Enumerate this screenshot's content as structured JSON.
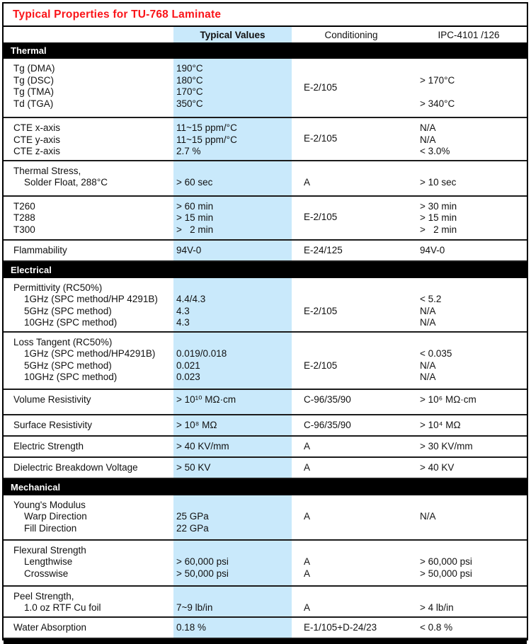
{
  "title": "Typical Properties for TU-768 Laminate",
  "header": {
    "typical": "Typical Values",
    "conditioning": "Conditioning",
    "ipc": "IPC-4101 /126"
  },
  "colors": {
    "title_red": "#fa1419",
    "stripe_blue": "#c9e9fb",
    "bar_black": "#000000"
  },
  "sections": [
    {
      "name": "Thermal",
      "rows": [
        {
          "property": {
            "lines": [
              "Tg (DMA)",
              "Tg (DSC)",
              "Tg (TMA)",
              "Td (TGA)"
            ]
          },
          "typical": {
            "lines": [
              "190°C",
              "180°C",
              "170°C",
              "350°C"
            ]
          },
          "conditioning": {
            "lines": [
              "E-2/105"
            ],
            "center": true
          },
          "ipc": {
            "lines": [
              "",
              "> 170°C",
              "",
              "> 340°C"
            ]
          }
        },
        {
          "property": {
            "lines": [
              "CTE x-axis",
              "CTE y-axis",
              "CTE z-axis"
            ]
          },
          "typical": {
            "lines": [
              "11~15 ppm/°C",
              "11~15 ppm/°C",
              "2.7 %"
            ]
          },
          "conditioning": {
            "lines": [
              "E-2/105"
            ],
            "center": true
          },
          "ipc": {
            "lines": [
              "N/A",
              "N/A",
              "< 3.0%"
            ]
          }
        },
        {
          "property": {
            "lines": [
              "Thermal Stress,",
              "    Solder Float, 288°C"
            ]
          },
          "typical": {
            "lines": [
              "",
              "> 60 sec"
            ]
          },
          "conditioning": {
            "lines": [
              "",
              "A"
            ]
          },
          "ipc": {
            "lines": [
              "",
              "> 10 sec"
            ]
          }
        },
        {
          "property": {
            "lines": [
              "T260",
              "T288",
              "T300"
            ]
          },
          "typical": {
            "lines": [
              "> 60 min",
              "> 15 min",
              ">   2 min"
            ]
          },
          "conditioning": {
            "lines": [
              "E-2/105"
            ],
            "center": true
          },
          "ipc": {
            "lines": [
              "> 30 min",
              "> 15 min",
              ">   2 min"
            ]
          }
        },
        {
          "property": {
            "lines": [
              "Flammability"
            ]
          },
          "typical": {
            "lines": [
              "94V-0"
            ]
          },
          "conditioning": {
            "lines": [
              "E-24/125"
            ]
          },
          "ipc": {
            "lines": [
              "94V-0"
            ]
          }
        }
      ]
    },
    {
      "name": "Electrical",
      "rows": [
        {
          "property": {
            "lines": [
              "Permittivity (RC50%)",
              "    1GHz (SPC method/HP 4291B)",
              "    5GHz (SPC method)",
              "    10GHz (SPC method)"
            ]
          },
          "typical": {
            "lines": [
              "",
              "4.4/4.3",
              "4.3",
              "4.3"
            ]
          },
          "conditioning": {
            "lines": [
              "",
              "",
              "E-2/105",
              ""
            ]
          },
          "ipc": {
            "lines": [
              "",
              "< 5.2",
              "N/A",
              "N/A"
            ]
          }
        },
        {
          "property": {
            "lines": [
              "Loss Tangent (RC50%)",
              "    1GHz (SPC method/HP4291B)",
              "    5GHz (SPC method)",
              "    10GHz (SPC method)"
            ]
          },
          "typical": {
            "lines": [
              "",
              "0.019/0.018",
              "0.021",
              "0.023"
            ]
          },
          "conditioning": {
            "lines": [
              "",
              "",
              "E-2/105",
              ""
            ]
          },
          "ipc": {
            "lines": [
              "",
              "< 0.035",
              "N/A",
              "N/A"
            ]
          }
        },
        {
          "property": {
            "lines": [
              "Volume Resistivity"
            ]
          },
          "typical": {
            "lines": [
              "> 10¹⁰ MΩ·cm"
            ]
          },
          "conditioning": {
            "lines": [
              "C-96/35/90"
            ]
          },
          "ipc": {
            "lines": [
              "> 10⁶ MΩ·cm"
            ]
          }
        },
        {
          "property": {
            "lines": [
              "Surface Resistivity"
            ]
          },
          "typical": {
            "lines": [
              "> 10⁸ MΩ"
            ]
          },
          "conditioning": {
            "lines": [
              "C-96/35/90"
            ]
          },
          "ipc": {
            "lines": [
              "> 10⁴ MΩ"
            ]
          }
        },
        {
          "property": {
            "lines": [
              "Electric Strength"
            ]
          },
          "typical": {
            "lines": [
              "> 40 KV/mm"
            ]
          },
          "conditioning": {
            "lines": [
              "A"
            ]
          },
          "ipc": {
            "lines": [
              "> 30 KV/mm"
            ]
          }
        },
        {
          "property": {
            "lines": [
              "Dielectric Breakdown Voltage"
            ]
          },
          "typical": {
            "lines": [
              "> 50 KV"
            ]
          },
          "conditioning": {
            "lines": [
              "A"
            ]
          },
          "ipc": {
            "lines": [
              "> 40 KV"
            ]
          }
        }
      ]
    },
    {
      "name": "Mechanical",
      "rows": [
        {
          "property": {
            "lines": [
              "Young's Modulus",
              "    Warp Direction",
              "    Fill Direction"
            ]
          },
          "typical": {
            "lines": [
              "",
              "25 GPa",
              "22 GPa"
            ]
          },
          "conditioning": {
            "lines": [
              "A"
            ],
            "center": true
          },
          "ipc": {
            "lines": [
              "N/A"
            ],
            "center": true
          }
        },
        {
          "property": {
            "lines": [
              "Flexural Strength",
              "    Lengthwise",
              "    Crosswise"
            ]
          },
          "typical": {
            "lines": [
              "",
              "> 60,000 psi",
              "> 50,000 psi"
            ]
          },
          "conditioning": {
            "lines": [
              "",
              "A",
              "A"
            ]
          },
          "ipc": {
            "lines": [
              "",
              "> 60,000 psi",
              "> 50,000 psi"
            ]
          }
        },
        {
          "property": {
            "lines": [
              "Peel Strength,",
              "    1.0 oz RTF Cu foil"
            ]
          },
          "typical": {
            "lines": [
              "",
              "7~9 lb/in"
            ]
          },
          "conditioning": {
            "lines": [
              "",
              "A"
            ]
          },
          "ipc": {
            "lines": [
              "",
              "> 4 lb/in"
            ]
          }
        },
        {
          "property": {
            "lines": [
              "Water Absorption"
            ]
          },
          "typical": {
            "lines": [
              "0.18 %"
            ]
          },
          "conditioning": {
            "lines": [
              "E-1/105+D-24/23"
            ]
          },
          "ipc": {
            "lines": [
              "< 0.8 %"
            ]
          }
        }
      ]
    }
  ]
}
